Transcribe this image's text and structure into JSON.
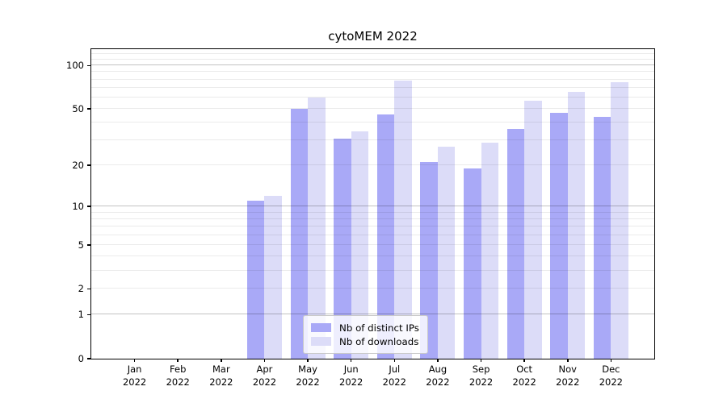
{
  "chart_data": {
    "type": "bar",
    "title": "cytoMEM 2022",
    "xlabel": "",
    "ylabel": "",
    "categories": [
      "Jan",
      "Feb",
      "Mar",
      "Apr",
      "May",
      "Jun",
      "Jul",
      "Aug",
      "Sep",
      "Oct",
      "Nov",
      "Dec"
    ],
    "year_label": "2022",
    "series": [
      {
        "name": "Nb of distinct IPs",
        "color": "#a9a9f7",
        "values": [
          0,
          0,
          0,
          11,
          50,
          31,
          46,
          21,
          19,
          36,
          47,
          44
        ]
      },
      {
        "name": "Nb of downloads",
        "color": "#dcdcf8",
        "values": [
          0,
          0,
          0,
          12,
          60,
          35,
          79,
          27,
          29,
          57,
          66,
          77
        ]
      }
    ],
    "yscale": "log1p",
    "yticks": [
      0,
      1,
      2,
      5,
      10,
      20,
      50,
      100
    ],
    "ylim": [
      0,
      129.6
    ],
    "xlim": [
      -1,
      12
    ],
    "bar_width_units": 0.4,
    "grid": true,
    "gridlines": {
      "major": [
        1,
        10,
        100
      ],
      "minor": [
        2,
        3,
        4,
        5,
        6,
        7,
        8,
        9,
        20,
        30,
        40,
        50,
        60,
        70,
        80,
        90,
        110,
        120
      ]
    },
    "legend": {
      "position": "lower center",
      "entries": [
        "Nb of distinct IPs",
        "Nb of downloads"
      ]
    }
  }
}
